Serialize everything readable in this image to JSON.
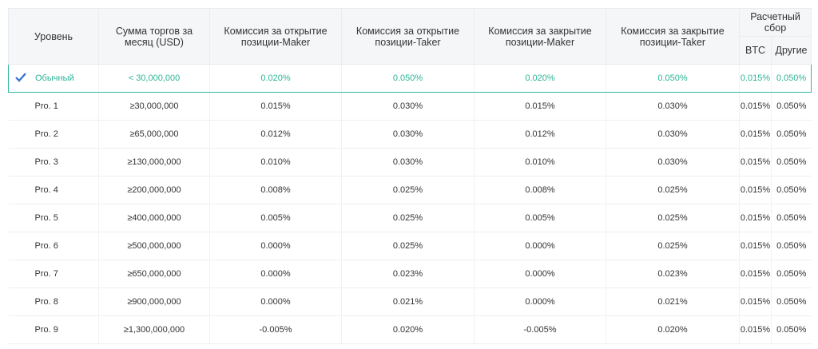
{
  "table": {
    "header": [
      "Уровень",
      "Сумма торгов за месяц (USD)",
      "Комиссия за открытие позиции-Maker",
      "Комиссия за открытие позиции-Taker",
      "Комиссия за закрытие позиции-Maker",
      "Комиссия за закрытие позиции-Taker",
      "Расчетный сбор"
    ],
    "subheader": [
      "BTC",
      "Другие"
    ],
    "rows": [
      [
        "Обычный",
        "< 30,000,000",
        "0.020%",
        "0.050%",
        "0.020%",
        "0.050%",
        "0.015%",
        "0.050%"
      ],
      [
        "Pro. 1",
        "≥30,000,000",
        "0.015%",
        "0.030%",
        "0.015%",
        "0.030%",
        "0.015%",
        "0.050%"
      ],
      [
        "Pro. 2",
        "≥65,000,000",
        "0.012%",
        "0.030%",
        "0.012%",
        "0.030%",
        "0.015%",
        "0.050%"
      ],
      [
        "Pro. 3",
        "≥130,000,000",
        "0.010%",
        "0.030%",
        "0.010%",
        "0.030%",
        "0.015%",
        "0.050%"
      ],
      [
        "Pro. 4",
        "≥200,000,000",
        "0.008%",
        "0.025%",
        "0.008%",
        "0.025%",
        "0.015%",
        "0.050%"
      ],
      [
        "Pro. 5",
        "≥400,000,000",
        "0.005%",
        "0.025%",
        "0.005%",
        "0.025%",
        "0.015%",
        "0.050%"
      ],
      [
        "Pro. 6",
        "≥500,000,000",
        "0.000%",
        "0.025%",
        "0.000%",
        "0.025%",
        "0.015%",
        "0.050%"
      ],
      [
        "Pro. 7",
        "≥650,000,000",
        "0.000%",
        "0.023%",
        "0.000%",
        "0.023%",
        "0.015%",
        "0.050%"
      ],
      [
        "Pro. 8",
        "≥900,000,000",
        "0.000%",
        "0.021%",
        "0.000%",
        "0.021%",
        "0.015%",
        "0.050%"
      ],
      [
        "Pro. 9",
        "≥1,300,000,000",
        "-0.005%",
        "0.020%",
        "-0.005%",
        "0.020%",
        "0.015%",
        "0.050%"
      ]
    ]
  }
}
